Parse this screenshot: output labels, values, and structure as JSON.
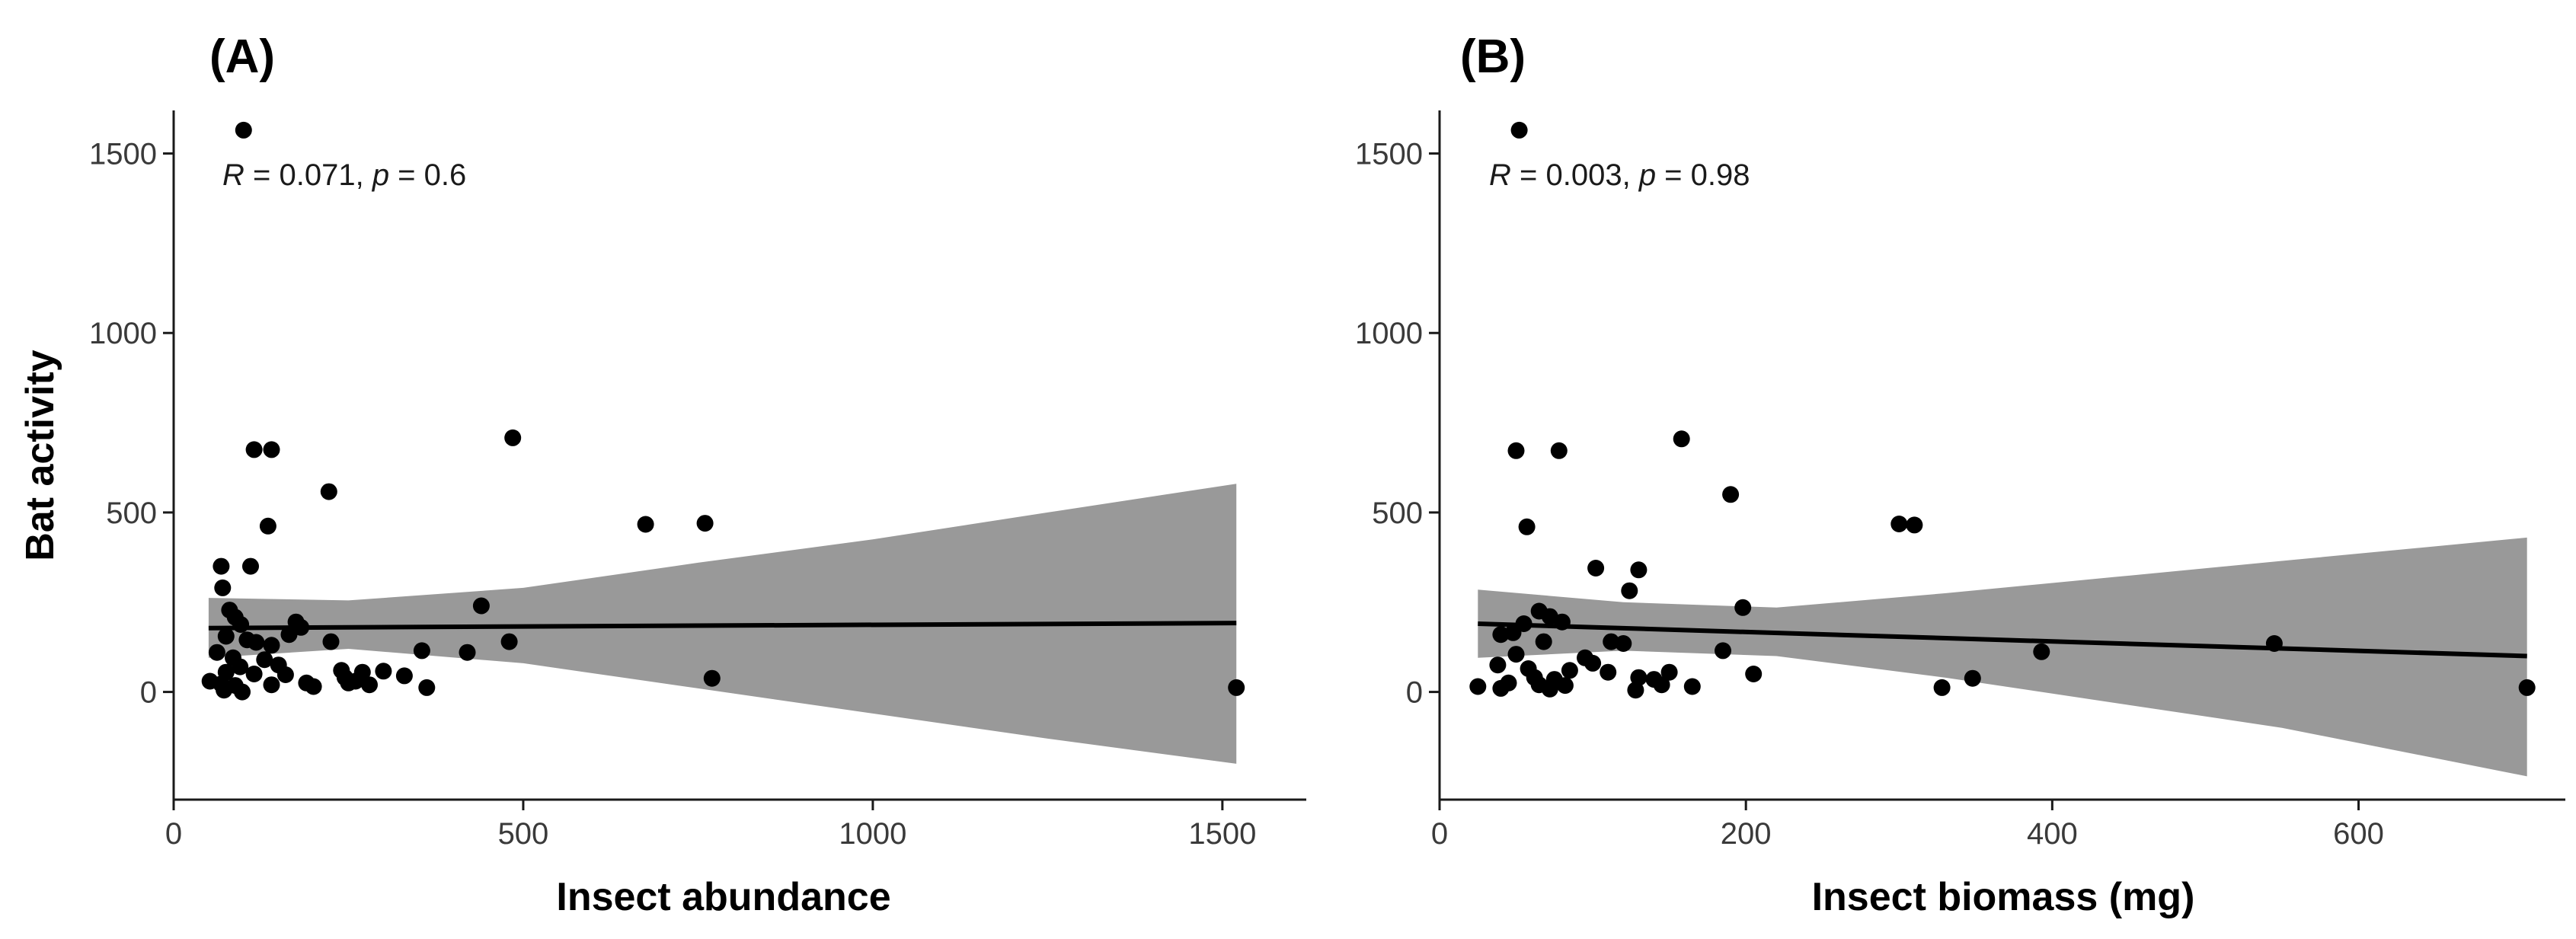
{
  "chart_data": [
    {
      "type": "scatter",
      "panel_label": "(A)",
      "xlabel": "Insect abundance",
      "ylabel": "Bat activity",
      "annotation": {
        "r_symbol": "R",
        "r_text": " = 0.071, ",
        "p_symbol": "p",
        "p_text": " = 0.6"
      },
      "xlim": [
        0,
        1620
      ],
      "ylim": [
        -300,
        1620
      ],
      "xticks": [
        0,
        500,
        1000,
        1500
      ],
      "yticks": [
        0,
        500,
        1000,
        1500
      ],
      "fit": {
        "x": [
          50,
          1520
        ],
        "y": [
          178,
          192
        ]
      },
      "ci_band": {
        "x": [
          50,
          250,
          500,
          750,
          1000,
          1250,
          1520
        ],
        "upper": [
          262,
          255,
          290,
          360,
          425,
          500,
          580
        ],
        "lower": [
          95,
          120,
          80,
          10,
          -60,
          -130,
          -200
        ]
      },
      "points": [
        {
          "x": 100,
          "y": 1565
        },
        {
          "x": 115,
          "y": 675
        },
        {
          "x": 140,
          "y": 675
        },
        {
          "x": 485,
          "y": 708
        },
        {
          "x": 222,
          "y": 558
        },
        {
          "x": 135,
          "y": 462
        },
        {
          "x": 675,
          "y": 467
        },
        {
          "x": 760,
          "y": 470
        },
        {
          "x": 68,
          "y": 350
        },
        {
          "x": 110,
          "y": 350
        },
        {
          "x": 70,
          "y": 290
        },
        {
          "x": 80,
          "y": 228
        },
        {
          "x": 88,
          "y": 208
        },
        {
          "x": 96,
          "y": 188
        },
        {
          "x": 440,
          "y": 240
        },
        {
          "x": 175,
          "y": 195
        },
        {
          "x": 182,
          "y": 180
        },
        {
          "x": 75,
          "y": 155
        },
        {
          "x": 105,
          "y": 145
        },
        {
          "x": 118,
          "y": 138
        },
        {
          "x": 140,
          "y": 130
        },
        {
          "x": 165,
          "y": 160
        },
        {
          "x": 225,
          "y": 140
        },
        {
          "x": 480,
          "y": 140
        },
        {
          "x": 420,
          "y": 110
        },
        {
          "x": 355,
          "y": 115
        },
        {
          "x": 62,
          "y": 110
        },
        {
          "x": 85,
          "y": 95
        },
        {
          "x": 130,
          "y": 90
        },
        {
          "x": 150,
          "y": 75
        },
        {
          "x": 95,
          "y": 70
        },
        {
          "x": 75,
          "y": 55
        },
        {
          "x": 115,
          "y": 50
        },
        {
          "x": 160,
          "y": 48
        },
        {
          "x": 240,
          "y": 60
        },
        {
          "x": 270,
          "y": 55
        },
        {
          "x": 300,
          "y": 58
        },
        {
          "x": 330,
          "y": 45
        },
        {
          "x": 245,
          "y": 40
        },
        {
          "x": 52,
          "y": 30
        },
        {
          "x": 68,
          "y": 22
        },
        {
          "x": 88,
          "y": 18
        },
        {
          "x": 140,
          "y": 20
        },
        {
          "x": 190,
          "y": 25
        },
        {
          "x": 200,
          "y": 15
        },
        {
          "x": 250,
          "y": 25
        },
        {
          "x": 260,
          "y": 30
        },
        {
          "x": 280,
          "y": 20
        },
        {
          "x": 72,
          "y": 5
        },
        {
          "x": 98,
          "y": 0
        },
        {
          "x": 770,
          "y": 38
        },
        {
          "x": 362,
          "y": 12
        },
        {
          "x": 1520,
          "y": 12
        }
      ]
    },
    {
      "type": "scatter",
      "panel_label": "(B)",
      "xlabel": "Insect biomass (mg)",
      "ylabel": "",
      "annotation": {
        "r_symbol": "R",
        "r_text": " = 0.003, ",
        "p_symbol": "p",
        "p_text": " = 0.98"
      },
      "xlim": [
        0,
        735
      ],
      "ylim": [
        -300,
        1620
      ],
      "xticks": [
        0,
        200,
        400,
        600
      ],
      "yticks": [
        0,
        500,
        1000,
        1500
      ],
      "fit": {
        "x": [
          25,
          710
        ],
        "y": [
          190,
          100
        ]
      },
      "ci_band": {
        "x": [
          25,
          120,
          220,
          330,
          440,
          550,
          710
        ],
        "upper": [
          285,
          250,
          235,
          275,
          320,
          365,
          430
        ],
        "lower": [
          95,
          115,
          100,
          40,
          -30,
          -100,
          -235
        ]
      },
      "points": [
        {
          "x": 52,
          "y": 1565
        },
        {
          "x": 50,
          "y": 672
        },
        {
          "x": 78,
          "y": 672
        },
        {
          "x": 158,
          "y": 705
        },
        {
          "x": 190,
          "y": 550
        },
        {
          "x": 57,
          "y": 460
        },
        {
          "x": 300,
          "y": 468
        },
        {
          "x": 310,
          "y": 465
        },
        {
          "x": 102,
          "y": 345
        },
        {
          "x": 130,
          "y": 340
        },
        {
          "x": 124,
          "y": 282
        },
        {
          "x": 198,
          "y": 235
        },
        {
          "x": 65,
          "y": 225
        },
        {
          "x": 72,
          "y": 210
        },
        {
          "x": 80,
          "y": 195
        },
        {
          "x": 40,
          "y": 160
        },
        {
          "x": 48,
          "y": 165
        },
        {
          "x": 55,
          "y": 190
        },
        {
          "x": 68,
          "y": 140
        },
        {
          "x": 112,
          "y": 140
        },
        {
          "x": 120,
          "y": 135
        },
        {
          "x": 185,
          "y": 115
        },
        {
          "x": 393,
          "y": 112
        },
        {
          "x": 545,
          "y": 135
        },
        {
          "x": 50,
          "y": 105
        },
        {
          "x": 95,
          "y": 95
        },
        {
          "x": 100,
          "y": 80
        },
        {
          "x": 38,
          "y": 75
        },
        {
          "x": 58,
          "y": 65
        },
        {
          "x": 85,
          "y": 60
        },
        {
          "x": 110,
          "y": 55
        },
        {
          "x": 150,
          "y": 55
        },
        {
          "x": 205,
          "y": 50
        },
        {
          "x": 62,
          "y": 40
        },
        {
          "x": 75,
          "y": 35
        },
        {
          "x": 130,
          "y": 40
        },
        {
          "x": 140,
          "y": 35
        },
        {
          "x": 45,
          "y": 25
        },
        {
          "x": 65,
          "y": 20
        },
        {
          "x": 82,
          "y": 18
        },
        {
          "x": 25,
          "y": 15
        },
        {
          "x": 40,
          "y": 10
        },
        {
          "x": 128,
          "y": 5
        },
        {
          "x": 145,
          "y": 20
        },
        {
          "x": 165,
          "y": 15
        },
        {
          "x": 72,
          "y": 8
        },
        {
          "x": 348,
          "y": 38
        },
        {
          "x": 328,
          "y": 12
        },
        {
          "x": 710,
          "y": 12
        }
      ]
    }
  ]
}
